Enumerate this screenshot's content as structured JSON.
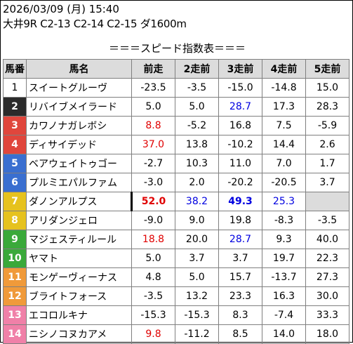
{
  "header": {
    "datetime": "2026/03/09 (月) 15:40",
    "race": "大井9R C2-13 C2-14 C2-15 ダ1600m",
    "title": "＝＝＝スピード指数表＝＝＝"
  },
  "columns": [
    "馬番",
    "馬名",
    "前走",
    "2走前",
    "3走前",
    "4走前",
    "5走前"
  ],
  "colors": {
    "red": "#e00000",
    "blue": "#0000e0",
    "header_bg": "#dcdcdc",
    "empty_bg": "#dcdcdc"
  },
  "rows": [
    {
      "num": "1",
      "name": "スイートグルーヴ",
      "bg": "#ffffff",
      "fg": "#000000",
      "vals": [
        {
          "v": "-23.5"
        },
        {
          "v": "-3.5"
        },
        {
          "v": "-15.0"
        },
        {
          "v": "-14.8"
        },
        {
          "v": "15.0"
        }
      ]
    },
    {
      "num": "2",
      "name": "リバイブメイラード",
      "bg": "#2b2b2b",
      "fg": "#ffffff",
      "vals": [
        {
          "v": "5.0"
        },
        {
          "v": "5.0"
        },
        {
          "v": "28.7",
          "c": "blue"
        },
        {
          "v": "17.3"
        },
        {
          "v": "28.3"
        }
      ]
    },
    {
      "num": "3",
      "name": "カワノナガレボシ",
      "bg": "#e0463c",
      "fg": "#ffffff",
      "vals": [
        {
          "v": "8.8",
          "c": "red"
        },
        {
          "v": "-5.2"
        },
        {
          "v": "16.8"
        },
        {
          "v": "7.5"
        },
        {
          "v": "-5.9"
        }
      ]
    },
    {
      "num": "4",
      "name": "ディサイデッド",
      "bg": "#e0463c",
      "fg": "#ffffff",
      "vals": [
        {
          "v": "37.0",
          "c": "red"
        },
        {
          "v": "13.8"
        },
        {
          "v": "-10.2"
        },
        {
          "v": "14.4"
        },
        {
          "v": "2.6"
        }
      ]
    },
    {
      "num": "5",
      "name": "ベアウェイトゥゴー",
      "bg": "#3a6fd0",
      "fg": "#ffffff",
      "vals": [
        {
          "v": "-2.7"
        },
        {
          "v": "10.3"
        },
        {
          "v": "11.0"
        },
        {
          "v": "7.0"
        },
        {
          "v": "1.7"
        }
      ]
    },
    {
      "num": "6",
      "name": "プルミエパルファム",
      "bg": "#3a6fd0",
      "fg": "#ffffff",
      "vals": [
        {
          "v": "-3.0"
        },
        {
          "v": "2.0"
        },
        {
          "v": "-20.2"
        },
        {
          "v": "-20.5"
        },
        {
          "v": "3.7"
        }
      ]
    },
    {
      "num": "7",
      "name": "ダノンアルプス",
      "bg": "#e6c21e",
      "fg": "#ffffff",
      "sel": true,
      "vals": [
        {
          "v": "52.0",
          "c": "red",
          "b": true
        },
        {
          "v": "38.2",
          "c": "blue"
        },
        {
          "v": "49.3",
          "c": "blue",
          "b": true
        },
        {
          "v": "25.3",
          "c": "blue"
        },
        {
          "v": "",
          "empty": true
        }
      ]
    },
    {
      "num": "8",
      "name": "アリダンジェロ",
      "bg": "#e6c21e",
      "fg": "#ffffff",
      "vals": [
        {
          "v": "-9.0"
        },
        {
          "v": "9.0"
        },
        {
          "v": "19.8"
        },
        {
          "v": "-8.3"
        },
        {
          "v": "-3.5"
        }
      ]
    },
    {
      "num": "9",
      "name": "マジェスティルール",
      "bg": "#3aa93a",
      "fg": "#ffffff",
      "vals": [
        {
          "v": "18.8",
          "c": "red"
        },
        {
          "v": "20.0"
        },
        {
          "v": "28.7",
          "c": "blue"
        },
        {
          "v": "9.3"
        },
        {
          "v": "40.0"
        }
      ]
    },
    {
      "num": "10",
      "name": "ヤマト",
      "bg": "#3aa93a",
      "fg": "#ffffff",
      "vals": [
        {
          "v": "5.0"
        },
        {
          "v": "3.7"
        },
        {
          "v": "3.7"
        },
        {
          "v": "19.7"
        },
        {
          "v": "22.3"
        }
      ]
    },
    {
      "num": "11",
      "name": "モンゲーヴィーナス",
      "bg": "#f09a3a",
      "fg": "#ffffff",
      "vals": [
        {
          "v": "4.8"
        },
        {
          "v": "5.0"
        },
        {
          "v": "15.7"
        },
        {
          "v": "-13.7"
        },
        {
          "v": "27.3"
        }
      ]
    },
    {
      "num": "12",
      "name": "ブライトフォース",
      "bg": "#f09a3a",
      "fg": "#ffffff",
      "vals": [
        {
          "v": "-3.5"
        },
        {
          "v": "13.2"
        },
        {
          "v": "23.3"
        },
        {
          "v": "16.3"
        },
        {
          "v": "30.0"
        }
      ]
    },
    {
      "num": "13",
      "name": "エコロルキナ",
      "bg": "#f080a8",
      "fg": "#ffffff",
      "vals": [
        {
          "v": "-15.3"
        },
        {
          "v": "-15.3"
        },
        {
          "v": "8.3"
        },
        {
          "v": "-7.4"
        },
        {
          "v": "33.3"
        }
      ]
    },
    {
      "num": "14",
      "name": "ニシノコヌカアメ",
      "bg": "#f080a8",
      "fg": "#ffffff",
      "vals": [
        {
          "v": "9.8",
          "c": "red"
        },
        {
          "v": "-11.2"
        },
        {
          "v": "8.5"
        },
        {
          "v": "14.0"
        },
        {
          "v": "18.0"
        }
      ]
    }
  ]
}
